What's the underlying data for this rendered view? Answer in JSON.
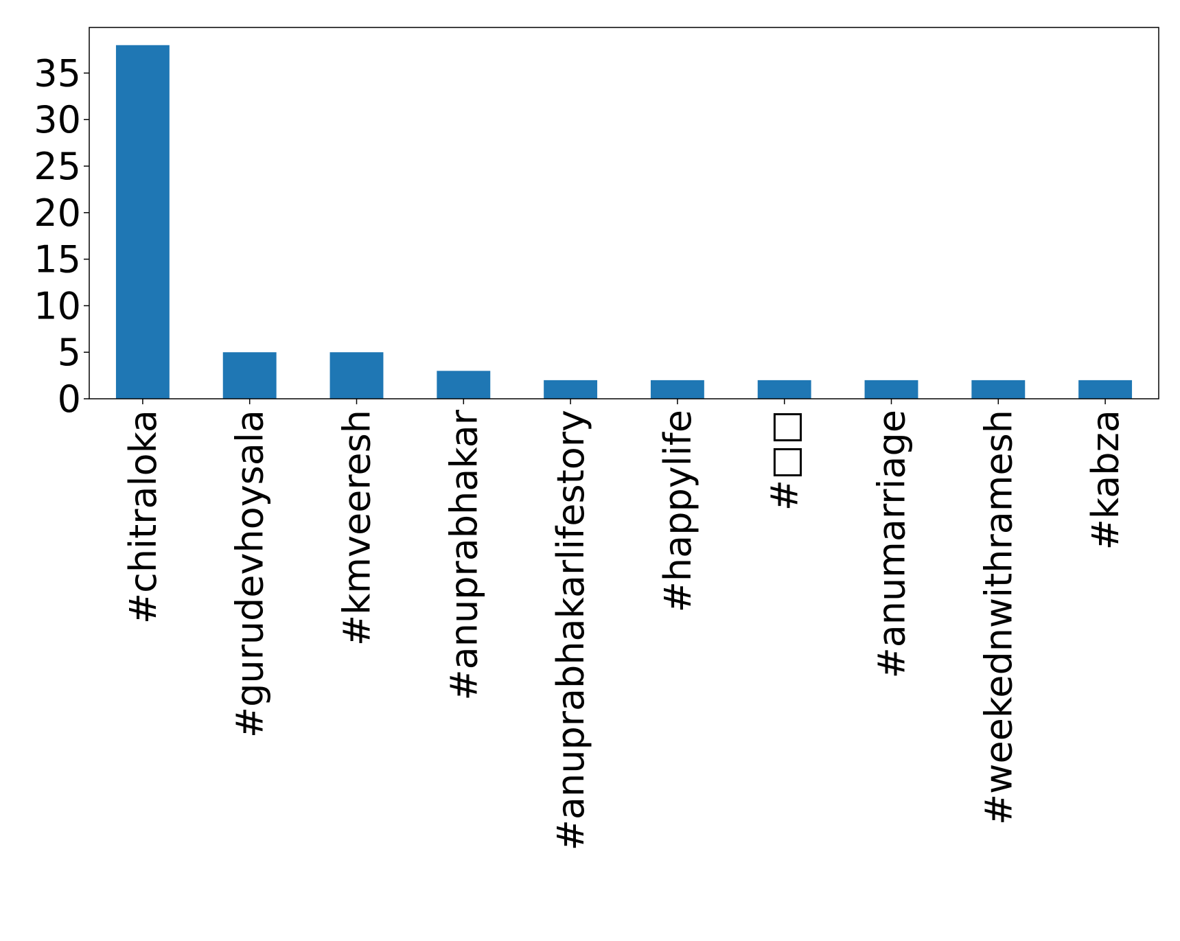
{
  "chart_data": {
    "type": "bar",
    "categories": [
      "#chitraloka",
      "#gurudevhoysala",
      "#kmveeresh",
      "#anuprabhakar",
      "#anuprabhakarlifestory",
      "#happylife",
      "#□□",
      "#anumarriage",
      "#weekednwithramesh",
      "#kabza"
    ],
    "values": [
      38,
      5,
      5,
      3,
      2,
      2,
      2,
      2,
      2,
      2
    ],
    "yticks": [
      0,
      5,
      10,
      15,
      20,
      25,
      30,
      35
    ],
    "ylim": [
      0,
      39.9
    ],
    "bar_color": "#1f77b4",
    "title": "",
    "xlabel": "",
    "ylabel": "",
    "grid": false,
    "legend": "none"
  }
}
